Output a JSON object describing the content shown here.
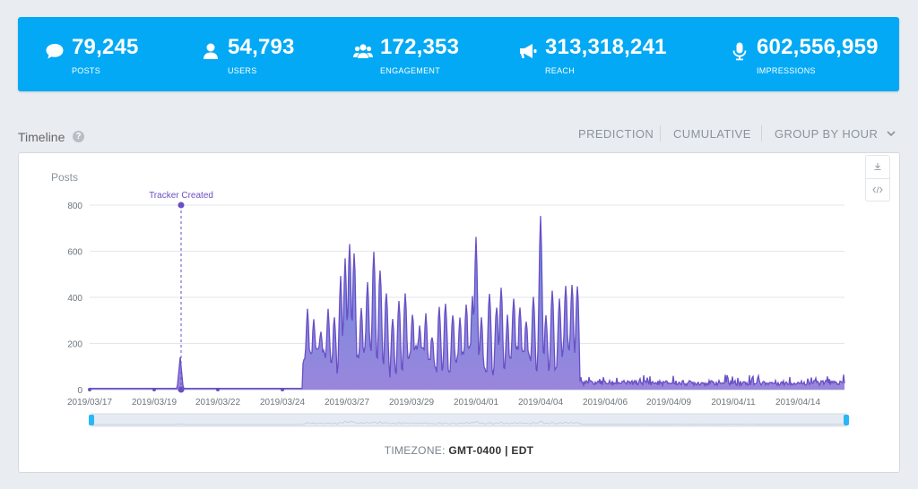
{
  "stats": [
    {
      "icon": "comment-icon",
      "value": "79,245",
      "label": "POSTS"
    },
    {
      "icon": "user-icon",
      "value": "54,793",
      "label": "USERS"
    },
    {
      "icon": "users-icon",
      "value": "172,353",
      "label": "ENGAGEMENT"
    },
    {
      "icon": "megaphone-icon",
      "value": "313,318,241",
      "label": "REACH"
    },
    {
      "icon": "microphone-icon",
      "value": "602,556,959",
      "label": "IMPRESSIONS"
    }
  ],
  "timeline": {
    "title": "Timeline",
    "help": "?",
    "controls": {
      "prediction": "PREDICTION",
      "cumulative": "CUMULATIVE",
      "group_by": "GROUP BY HOUR"
    },
    "timezone_label": "TIMEZONE:",
    "timezone_value": "GMT-0400 | EDT"
  },
  "chart_data": {
    "type": "area",
    "ylabel": "Posts",
    "ylim": [
      0,
      800
    ],
    "yticks": [
      0,
      200,
      400,
      600,
      800
    ],
    "xticks": [
      "2019/03/17",
      "2019/03/19",
      "2019/03/22",
      "2019/03/24",
      "2019/03/27",
      "2019/03/29",
      "2019/04/01",
      "2019/04/04",
      "2019/04/06",
      "2019/04/09",
      "2019/04/11",
      "2019/04/14"
    ],
    "annotation": {
      "text": "Tracker Created",
      "x": "2019/03/20 12:00",
      "y": 800
    },
    "colors": {
      "line": "#6a4fc4",
      "area_top": "#5a7fe0",
      "area_bottom": "#8a70d8",
      "annotation": "#6a4fc4"
    }
  }
}
